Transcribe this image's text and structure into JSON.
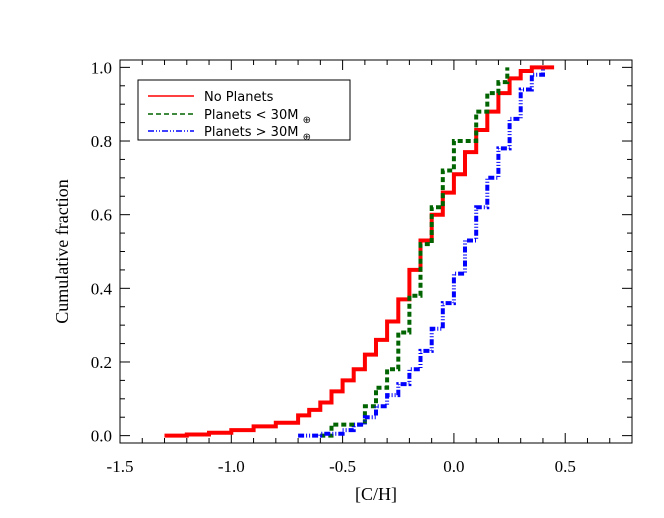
{
  "chart_data": {
    "type": "line",
    "title": "",
    "xlabel": "[C/H]",
    "ylabel": "Cumulative fraction",
    "xlim": [
      -1.5,
      0.8
    ],
    "ylim": [
      -0.02,
      1.02
    ],
    "x_ticks": [
      -1.5,
      -1.0,
      -0.5,
      0.0,
      0.5
    ],
    "x_tick_labels": [
      "-1.5",
      "-1.0",
      "-0.5",
      "0.0",
      "0.5"
    ],
    "y_ticks": [
      0.0,
      0.2,
      0.4,
      0.6,
      0.8,
      1.0
    ],
    "y_tick_labels": [
      "0.0",
      "0.2",
      "0.4",
      "0.6",
      "0.8",
      "1.0"
    ],
    "grid": false,
    "legend_position": "top-left",
    "series": [
      {
        "name": "No Planets",
        "color": "#ff0000",
        "dash": "solid",
        "x": [
          -1.3,
          -1.2,
          -1.1,
          -1.0,
          -0.9,
          -0.8,
          -0.7,
          -0.65,
          -0.6,
          -0.55,
          -0.5,
          -0.45,
          -0.4,
          -0.35,
          -0.3,
          -0.25,
          -0.2,
          -0.15,
          -0.1,
          -0.05,
          0.0,
          0.05,
          0.1,
          0.15,
          0.2,
          0.25,
          0.3,
          0.35,
          0.4,
          0.45
        ],
        "y": [
          0.0,
          0.003,
          0.008,
          0.015,
          0.025,
          0.035,
          0.055,
          0.07,
          0.09,
          0.12,
          0.15,
          0.18,
          0.22,
          0.26,
          0.31,
          0.37,
          0.45,
          0.53,
          0.6,
          0.66,
          0.71,
          0.77,
          0.83,
          0.88,
          0.93,
          0.97,
          0.99,
          1.0,
          1.0,
          1.0
        ]
      },
      {
        "name": "Planets < 30M",
        "color": "#006400",
        "dash": "dashed",
        "x": [
          -0.6,
          -0.55,
          -0.5,
          -0.45,
          -0.4,
          -0.35,
          -0.3,
          -0.25,
          -0.2,
          -0.15,
          -0.1,
          -0.05,
          0.0,
          0.05,
          0.1,
          0.15,
          0.2,
          0.24
        ],
        "y": [
          0.0,
          0.03,
          0.03,
          0.03,
          0.08,
          0.13,
          0.18,
          0.28,
          0.38,
          0.52,
          0.62,
          0.72,
          0.8,
          0.8,
          0.88,
          0.93,
          0.96,
          1.0
        ]
      },
      {
        "name": "Planets > 30M",
        "color": "#0000ff",
        "dash": "dash-dot",
        "x": [
          -0.7,
          -0.6,
          -0.5,
          -0.45,
          -0.4,
          -0.35,
          -0.3,
          -0.25,
          -0.2,
          -0.15,
          -0.1,
          -0.05,
          0.0,
          0.05,
          0.1,
          0.15,
          0.2,
          0.25,
          0.3,
          0.35,
          0.4
        ],
        "y": [
          0.0,
          0.005,
          0.015,
          0.03,
          0.05,
          0.08,
          0.11,
          0.14,
          0.18,
          0.23,
          0.29,
          0.36,
          0.44,
          0.53,
          0.62,
          0.7,
          0.78,
          0.86,
          0.94,
          0.98,
          1.0
        ]
      }
    ]
  },
  "legend": {
    "items": [
      {
        "label": "No Planets",
        "subscript": ""
      },
      {
        "label": "Planets  <  30M",
        "subscript": "⊕"
      },
      {
        "label": "Planets  >  30M",
        "subscript": "⊕"
      }
    ]
  }
}
